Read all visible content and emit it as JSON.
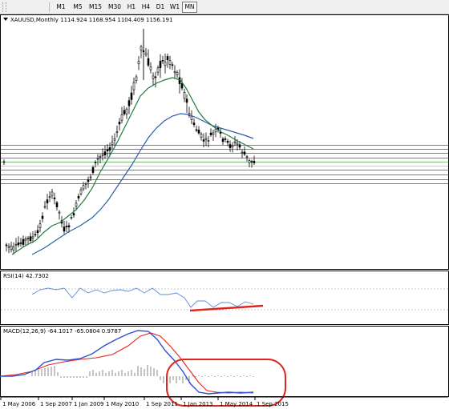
{
  "toolbar": {
    "timeframes": [
      {
        "label": "M1",
        "active": false
      },
      {
        "label": "M5",
        "active": false
      },
      {
        "label": "M15",
        "active": false
      },
      {
        "label": "M30",
        "active": false
      },
      {
        "label": "H1",
        "active": false
      },
      {
        "label": "H4",
        "active": false
      },
      {
        "label": "D1",
        "active": false
      },
      {
        "label": "W1",
        "active": false
      },
      {
        "label": "MN",
        "active": true
      }
    ]
  },
  "main_chart": {
    "header": "XAUUSD,Monthly  1114.924 1168.954 1104.409 1156.191"
  },
  "rsi_panel": {
    "header": "RSI(14) 42.7302"
  },
  "macd_panel": {
    "header": "MACD(12,26,9) -64.1017 -65.0804 0.9787"
  },
  "time_axis": {
    "labels": [
      "1 May 2006",
      "1 Sep 2007",
      "1 Jan 2009",
      "1 May 2010",
      "1 Sep 2011",
      "1 Jan 2013",
      "1 May 2014",
      "1 Sep 2015"
    ]
  },
  "colors": {
    "bull_candle": "#ffffff",
    "bear_candle": "#000000",
    "ma_fast": "#1f7a3a",
    "ma_slow": "#2b5fa8",
    "rsi_line": "#5b8fd6",
    "macd_line": "#2f4fd6",
    "signal_line": "#e0261c",
    "annotation": "#e0261c",
    "level_yellow": "#d8c400",
    "level_green": "#4fa84f"
  }
}
